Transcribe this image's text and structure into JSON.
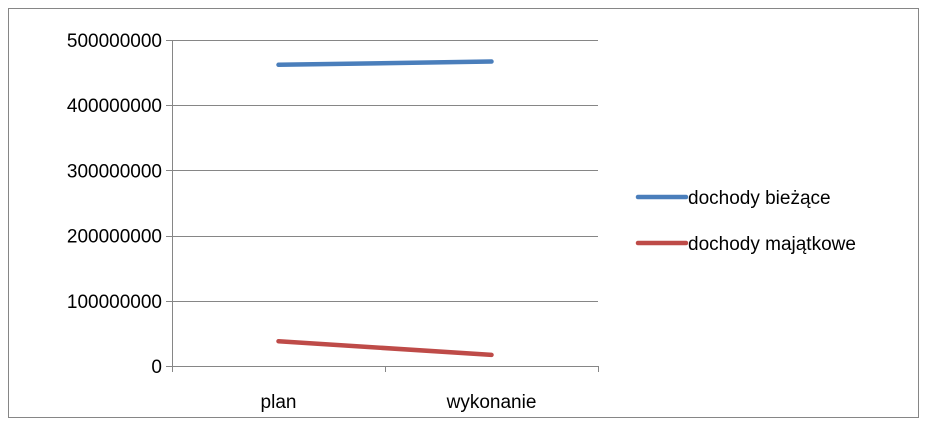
{
  "chart_data": {
    "type": "line",
    "categories": [
      "plan",
      "wykonanie"
    ],
    "series": [
      {
        "name": "dochody bieżące",
        "color": "#4a7ebb",
        "values": [
          462000000,
          467000000
        ]
      },
      {
        "name": "dochody majątkowe",
        "color": "#be4b48",
        "values": [
          38000000,
          17000000
        ]
      }
    ],
    "y_ticks": [
      "0",
      "100000000",
      "200000000",
      "300000000",
      "400000000",
      "500000000"
    ],
    "ylim": [
      0,
      500000000
    ],
    "grid": true,
    "legend_position": "right",
    "title": "",
    "xlabel": "",
    "ylabel": ""
  }
}
